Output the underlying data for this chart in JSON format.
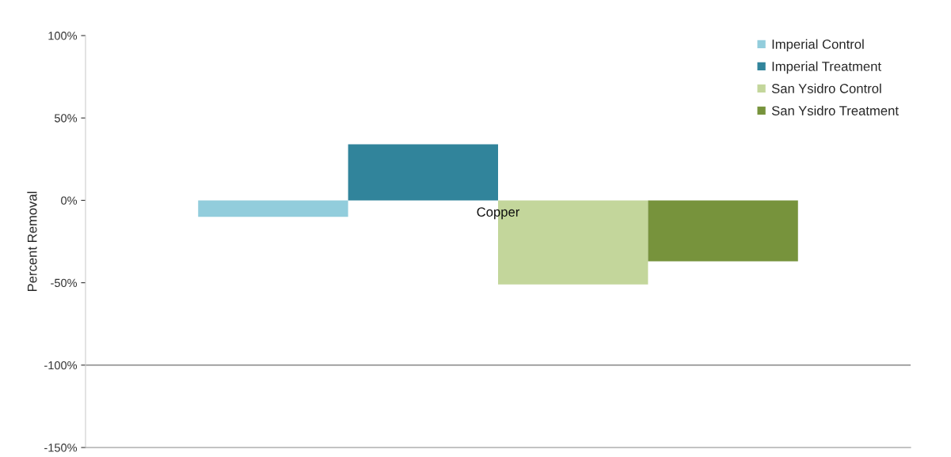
{
  "chart_data": {
    "type": "bar",
    "ylabel": "Percent Removal",
    "categories": [
      "Copper"
    ],
    "series": [
      {
        "name": "Imperial Control",
        "color": "#92cddc",
        "values": [
          -10
        ]
      },
      {
        "name": "Imperial Treatment",
        "color": "#31849b",
        "values": [
          34
        ]
      },
      {
        "name": "San Ysidro Control",
        "color": "#c3d69b",
        "values": [
          -51
        ]
      },
      {
        "name": "San Ysidro Treatment",
        "color": "#77933c",
        "values": [
          -37
        ]
      }
    ],
    "ylim": [
      -150,
      100
    ],
    "yticks": [
      {
        "value": 100,
        "label": "100%"
      },
      {
        "value": 50,
        "label": "50%"
      },
      {
        "value": 0,
        "label": "0%"
      },
      {
        "value": -50,
        "label": "-50%"
      },
      {
        "value": -100,
        "label": "-100%"
      },
      {
        "value": -150,
        "label": "-150%"
      }
    ],
    "ref_lines": [
      {
        "axis": "y",
        "value": -100,
        "color": "#888888"
      }
    ],
    "grid": false,
    "legend": "top right"
  }
}
